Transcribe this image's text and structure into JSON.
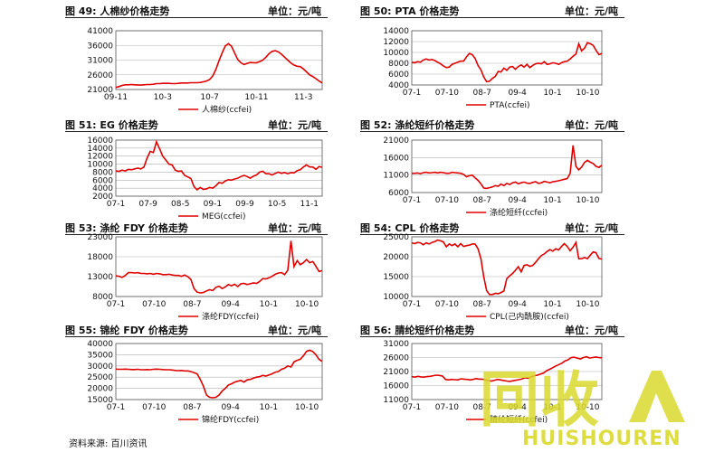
{
  "source_text": "资料来源: 百川资讯",
  "colors": {
    "line": "#e00000",
    "grid": "#b0b0b0",
    "axis": "#555555",
    "watermark": "#d9d92e"
  },
  "watermark": {
    "logo_glyphs": "回收",
    "brand": "HUISHOUREN"
  },
  "chart_data": [
    {
      "type": "line",
      "title": "图 49: 人棉纱价格走势",
      "unit": "单位：元/吨",
      "legend": "人棉纱(ccfei)",
      "x_ticks": [
        "09-11",
        "10-3",
        "10-7",
        "10-11",
        "11-3"
      ],
      "y_ticks": [
        21000,
        26000,
        31000,
        36000,
        41000
      ],
      "ylim": [
        21000,
        41000
      ],
      "values": [
        21700,
        22000,
        22400,
        22600,
        22600,
        22700,
        22600,
        22500,
        22500,
        22600,
        22700,
        22700,
        22800,
        23000,
        23000,
        23100,
        23100,
        23100,
        23000,
        23000,
        23100,
        23200,
        23200,
        23200,
        23300,
        23300,
        23300,
        23400,
        23600,
        23900,
        24400,
        25600,
        27800,
        30800,
        33500,
        35800,
        36600,
        35700,
        33400,
        31200,
        30100,
        29500,
        29900,
        30200,
        30100,
        30100,
        30500,
        31000,
        32000,
        33200,
        34000,
        34200,
        33800,
        33000,
        32000,
        31000,
        30000,
        29300,
        28900,
        28800,
        28000,
        27000,
        26000,
        25400,
        24700,
        23900,
        23200
      ]
    },
    {
      "type": "line",
      "title": "图 50: PTA 价格走势",
      "unit": "单位：元/吨",
      "legend": "PTA(ccfei)",
      "x_ticks": [
        "07-1",
        "07-10",
        "08-7",
        "09-4",
        "10-1",
        "10-10"
      ],
      "y_ticks": [
        4000,
        6000,
        8000,
        10000,
        12000,
        14000
      ],
      "ylim": [
        4000,
        14000
      ],
      "values": [
        8200,
        8100,
        8300,
        8200,
        8600,
        8800,
        8600,
        8700,
        8500,
        8200,
        7900,
        7500,
        7200,
        7300,
        7800,
        8000,
        8200,
        8400,
        8400,
        9200,
        9800,
        9600,
        8900,
        7600,
        6800,
        5500,
        4600,
        4700,
        5200,
        5600,
        6500,
        6400,
        7100,
        6700,
        7300,
        7400,
        6900,
        7400,
        7700,
        7300,
        7800,
        7200,
        7600,
        7900,
        8000,
        7900,
        8300,
        7800,
        7900,
        8100,
        8000,
        7800,
        8100,
        8300,
        8400,
        8800,
        9300,
        9700,
        11600,
        10300,
        10800,
        11800,
        11600,
        11300,
        10400,
        9600,
        9800
      ]
    },
    {
      "type": "line",
      "title": "图 51: EG 价格走势",
      "unit": "单位：元/吨",
      "legend": "MEG(ccfei)",
      "x_ticks": [
        "07-1",
        "07-9",
        "08-5",
        "09-1",
        "09-9",
        "10-5",
        "11-1"
      ],
      "y_ticks": [
        2000,
        4000,
        6000,
        8000,
        10000,
        12000,
        14000,
        16000
      ],
      "ylim": [
        2000,
        16000
      ],
      "values": [
        8300,
        8200,
        8500,
        8300,
        8700,
        8600,
        8800,
        9000,
        8800,
        9300,
        11500,
        13200,
        12900,
        15600,
        13800,
        12000,
        11000,
        10000,
        9800,
        8500,
        8200,
        8300,
        7200,
        6800,
        6400,
        4400,
        3600,
        4200,
        3700,
        3800,
        4200,
        4000,
        4600,
        5400,
        5200,
        5800,
        6100,
        6000,
        6300,
        6500,
        6900,
        7200,
        6900,
        6500,
        7000,
        7300,
        8000,
        8200,
        7600,
        7600,
        7300,
        7700,
        8000,
        7700,
        7900,
        7600,
        7900,
        7800,
        8400,
        8600,
        9300,
        9800,
        9300,
        9300,
        8700,
        9400,
        9200
      ]
    },
    {
      "type": "line",
      "title": "图 52: 涤纶短纤价格走势",
      "unit": "单位：元/吨",
      "legend": "涤纶短纤(ccfei)",
      "x_ticks": [
        "07-1",
        "07-10",
        "08-7",
        "09-4",
        "10-1",
        "10-10"
      ],
      "y_ticks": [
        6000,
        11000,
        16000,
        21000
      ],
      "ylim": [
        6000,
        21000
      ],
      "values": [
        11500,
        11500,
        11600,
        11400,
        11700,
        11800,
        11600,
        11700,
        11800,
        11600,
        11800,
        11700,
        11500,
        11500,
        11800,
        11700,
        11600,
        11500,
        11200,
        10500,
        10800,
        11000,
        10200,
        9500,
        8500,
        7300,
        7200,
        7400,
        7600,
        8000,
        7800,
        8400,
        8000,
        8600,
        8300,
        8800,
        9000,
        8500,
        8800,
        9000,
        8700,
        8600,
        8900,
        9100,
        8600,
        8800,
        9200,
        9000,
        8800,
        9100,
        9200,
        9400,
        9600,
        9800,
        10000,
        11500,
        19500,
        13500,
        12500,
        13300,
        14600,
        15200,
        14700,
        14300,
        13500,
        13200,
        13800
      ]
    },
    {
      "type": "line",
      "title": "图 53: 涤纶 FDY 价格走势",
      "unit": "单位：元/吨",
      "legend": "涤纶FDY(ccfei)",
      "x_ticks": [
        "07-1",
        "07-10",
        "08-7",
        "09-4",
        "10-1",
        "10-10"
      ],
      "y_ticks": [
        8000,
        13000,
        18000,
        23000
      ],
      "ylim": [
        8000,
        23000
      ],
      "values": [
        13200,
        13100,
        12800,
        13300,
        14000,
        14000,
        13900,
        14000,
        13800,
        13800,
        13700,
        13800,
        13600,
        13800,
        13700,
        13500,
        13500,
        13600,
        13400,
        13300,
        13300,
        13100,
        13400,
        13000,
        12300,
        10000,
        9100,
        8900,
        9000,
        9400,
        9700,
        9500,
        10300,
        10600,
        10000,
        10400,
        11000,
        10700,
        11100,
        10500,
        11200,
        11300,
        11000,
        11200,
        11400,
        11300,
        11800,
        12500,
        12400,
        12700,
        13100,
        13600,
        13900,
        14000,
        13500,
        14600,
        22000,
        15500,
        17000,
        16000,
        16500,
        17300,
        16500,
        16800,
        15600,
        14300,
        14500
      ]
    },
    {
      "type": "line",
      "title": "图 54: CPL 价格走势",
      "unit": "单位：元/吨",
      "legend": "CPL(己内酰胺)(ccfei)",
      "x_ticks": [
        "07-1",
        "07-10",
        "08-7",
        "09-4",
        "10-1",
        "10-10"
      ],
      "y_ticks": [
        10000,
        15000,
        20000,
        25000
      ],
      "ylim": [
        10000,
        25000
      ],
      "values": [
        23500,
        23300,
        23600,
        23500,
        23000,
        23500,
        23200,
        23600,
        23800,
        24200,
        24000,
        23700,
        22500,
        23200,
        22800,
        23200,
        22500,
        23300,
        22600,
        22800,
        22900,
        23200,
        23200,
        22000,
        19500,
        15000,
        11500,
        10500,
        10500,
        10800,
        10700,
        11000,
        11400,
        14500,
        15200,
        15800,
        16600,
        17500,
        16200,
        17800,
        18000,
        17600,
        17800,
        18600,
        19500,
        20300,
        20700,
        21300,
        21800,
        21400,
        22000,
        21700,
        22600,
        23300,
        22600,
        21500,
        22400,
        23600,
        19500,
        19500,
        19800,
        19500,
        20400,
        21200,
        21000,
        19600,
        19400
      ]
    },
    {
      "type": "line",
      "title": "图 55: 锦纶 FDY 价格走势",
      "unit": "单位：元/吨",
      "legend": "锦纶FDY(ccfei)",
      "x_ticks": [
        "07-1",
        "07-10",
        "08-7",
        "09-4",
        "10-1",
        "10-10"
      ],
      "y_ticks": [
        15000,
        20000,
        25000,
        30000,
        35000,
        40000
      ],
      "ylim": [
        15000,
        40000
      ],
      "values": [
        28600,
        28500,
        28500,
        28600,
        28500,
        28400,
        28400,
        28500,
        28300,
        28300,
        28400,
        28300,
        28500,
        28600,
        28500,
        28400,
        28300,
        28300,
        28200,
        28000,
        27900,
        28000,
        27800,
        27800,
        27500,
        27000,
        26500,
        24000,
        21000,
        17000,
        16000,
        15800,
        16000,
        17000,
        18800,
        20000,
        21500,
        22000,
        22800,
        23200,
        23500,
        22800,
        23800,
        24000,
        24500,
        25000,
        25200,
        25800,
        25500,
        26000,
        26500,
        27200,
        27500,
        28500,
        29000,
        30000,
        29500,
        31800,
        32500,
        33000,
        34500,
        36500,
        37000,
        36400,
        35000,
        33000,
        32000
      ]
    },
    {
      "type": "line",
      "title": "图 56: 腈纶短纤价格走势",
      "unit": "单位：元/吨",
      "legend": "腈纶短纤(ccfei)",
      "x_ticks": [
        "07-1",
        "07-10",
        "08-7",
        "09-4",
        "10-1",
        "10-10"
      ],
      "y_ticks": [
        11000,
        16000,
        21000,
        26000,
        31000
      ],
      "ylim": [
        11000,
        31000
      ],
      "values": [
        19200,
        19000,
        19300,
        19100,
        19000,
        19200,
        19300,
        19500,
        19700,
        19600,
        19400,
        18200,
        18000,
        18200,
        18100,
        18000,
        18400,
        18300,
        18200,
        18000,
        18200,
        18500,
        18300,
        18300,
        18000,
        17800,
        17600,
        17900,
        18200,
        18000,
        17800,
        17600,
        17500,
        17700,
        17900,
        18100,
        18400,
        18800,
        18600,
        19100,
        19500,
        19700,
        20100,
        20500,
        21300,
        21800,
        22400,
        23000,
        23500,
        24000,
        24800,
        25200,
        26000,
        26100,
        25800,
        25500,
        26000,
        26300,
        25800,
        26000,
        26200,
        26000,
        25900
      ]
    }
  ]
}
